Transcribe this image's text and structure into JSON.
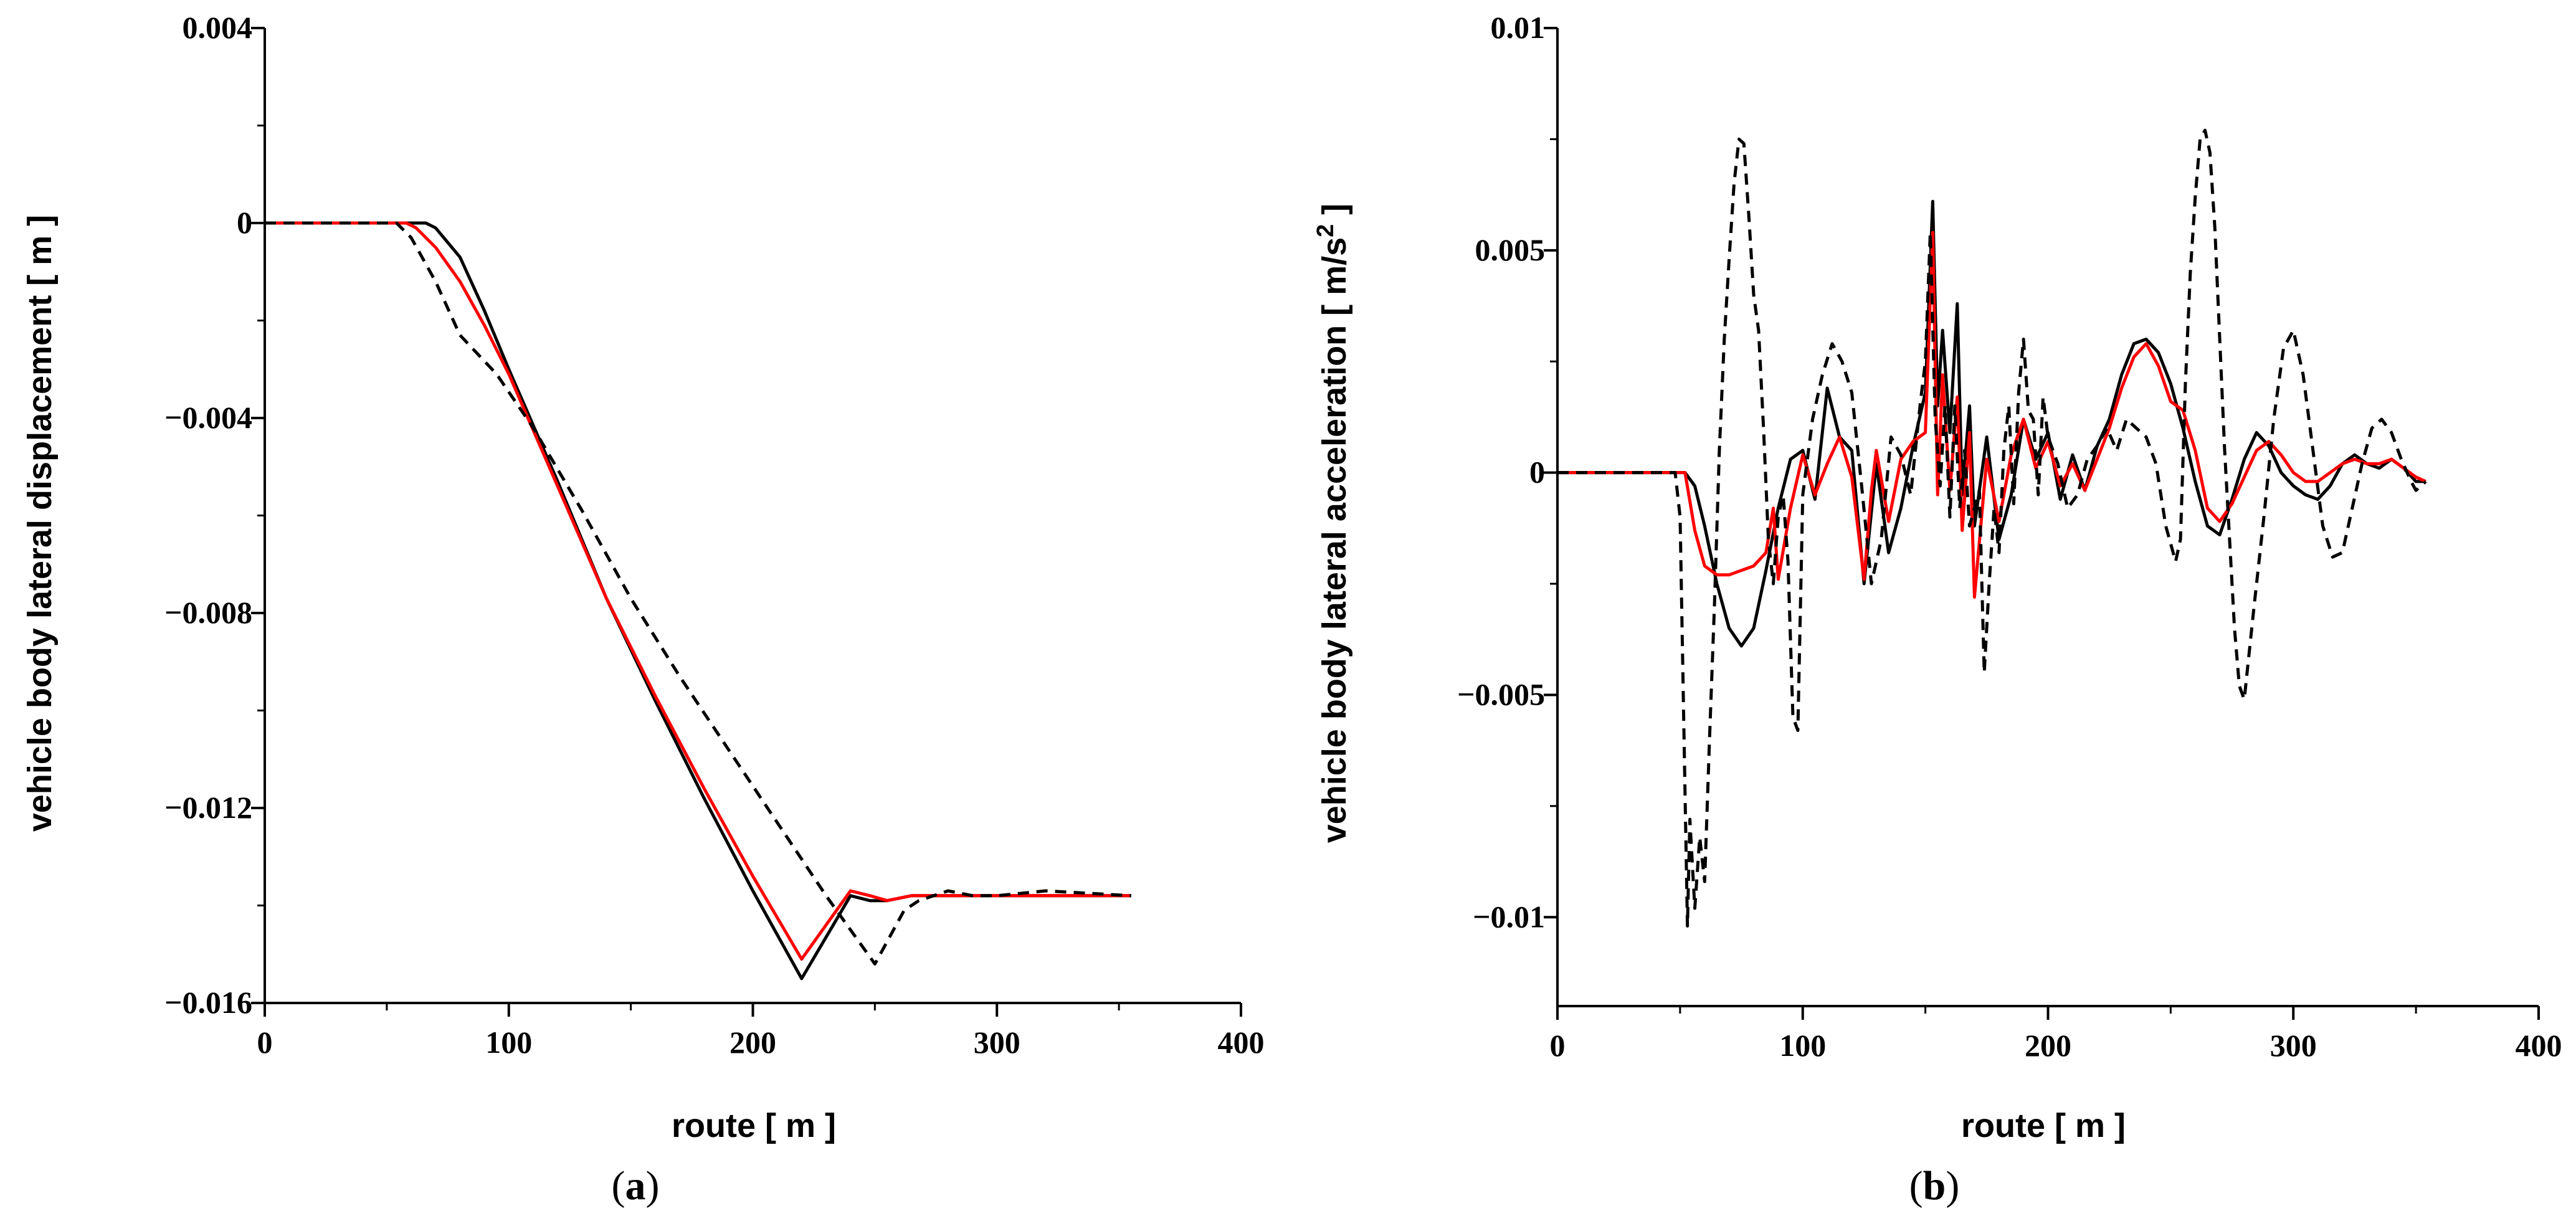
{
  "chart_data": [
    {
      "type": "line",
      "panel_label": "a",
      "xlabel": "route [ m ]",
      "ylabel": "vehicle body lateral displacement [ m ]",
      "xlim": [
        0,
        400
      ],
      "ylim": [
        -0.016,
        0.004
      ],
      "x_ticks": [
        0,
        100,
        200,
        300,
        400
      ],
      "x_tick_labels": [
        "0",
        "100",
        "200",
        "300",
        "400"
      ],
      "y_ticks": [
        0.004,
        0,
        -0.004,
        -0.008,
        -0.012,
        -0.016
      ],
      "y_tick_labels": [
        "0.004",
        "0",
        "−0.004",
        "−0.008",
        "−0.012",
        "−0.016"
      ],
      "series": [
        {
          "name": "black-solid",
          "color": "#000000",
          "dash": "",
          "x": [
            0,
            60,
            66,
            70,
            80,
            90,
            100,
            120,
            140,
            160,
            180,
            200,
            220,
            240,
            248,
            255,
            265,
            280,
            300,
            320,
            355
          ],
          "y": [
            0,
            0,
            0,
            -0.0001,
            -0.0007,
            -0.0018,
            -0.003,
            -0.0053,
            -0.0077,
            -0.0098,
            -0.0118,
            -0.0137,
            -0.0155,
            -0.0138,
            -0.0139,
            -0.0139,
            -0.0138,
            -0.0138,
            -0.0138,
            -0.0138,
            -0.0138
          ]
        },
        {
          "name": "red-solid",
          "color": "#ff0000",
          "dash": "",
          "x": [
            0,
            58,
            62,
            70,
            80,
            90,
            100,
            120,
            140,
            160,
            180,
            200,
            220,
            240,
            248,
            255,
            265,
            280,
            300,
            320,
            355
          ],
          "y": [
            0,
            0,
            -0.0001,
            -0.0005,
            -0.0012,
            -0.0021,
            -0.0031,
            -0.0054,
            -0.0077,
            -0.0097,
            -0.0116,
            -0.0134,
            -0.0151,
            -0.0137,
            -0.0138,
            -0.0139,
            -0.0138,
            -0.0138,
            -0.0138,
            -0.0138,
            -0.0138
          ]
        },
        {
          "name": "black-dashed",
          "color": "#000000",
          "dash": "18,12",
          "x": [
            0,
            54,
            60,
            70,
            80,
            95,
            110,
            130,
            150,
            170,
            190,
            210,
            230,
            250,
            262,
            268,
            280,
            290,
            300,
            320,
            355
          ],
          "y": [
            0,
            0,
            -0.0003,
            -0.0012,
            -0.0023,
            -0.0031,
            -0.0042,
            -0.0059,
            -0.0077,
            -0.0093,
            -0.0108,
            -0.0123,
            -0.0138,
            -0.0152,
            -0.0141,
            -0.0139,
            -0.0137,
            -0.0138,
            -0.0138,
            -0.0137,
            -0.0138
          ]
        }
      ]
    },
    {
      "type": "line",
      "panel_label": "b",
      "xlabel": "route [ m ]",
      "ylabel": "vehicle body lateral acceleration [ m/s",
      "ylabel_sup": "2",
      "ylabel_end": " ]",
      "xlim": [
        0,
        400
      ],
      "ylim": [
        -0.012,
        0.01
      ],
      "x_ticks": [
        0,
        100,
        200,
        300,
        400
      ],
      "x_tick_labels": [
        "0",
        "100",
        "200",
        "300",
        "400"
      ],
      "y_ticks": [
        0.01,
        0.005,
        0,
        -0.005,
        -0.01
      ],
      "y_tick_labels": [
        "0.01",
        "0.005",
        "0",
        "−0.005",
        "−0.01"
      ],
      "series": [
        {
          "name": "black-solid",
          "color": "#000000",
          "dash": "",
          "x": [
            0,
            48,
            52,
            56,
            60,
            65,
            70,
            75,
            80,
            85,
            90,
            95,
            100,
            105,
            110,
            115,
            120,
            125,
            130,
            135,
            140,
            145,
            150,
            153,
            155,
            157,
            160,
            163,
            165,
            168,
            170,
            175,
            180,
            185,
            190,
            195,
            200,
            205,
            210,
            215,
            220,
            225,
            230,
            235,
            240,
            245,
            250,
            255,
            260,
            265,
            270,
            275,
            280,
            285,
            290,
            295,
            300,
            305,
            310,
            315,
            320,
            325,
            330,
            335,
            340,
            345,
            350,
            354
          ],
          "y": [
            0,
            0,
            0,
            -0.0003,
            -0.0012,
            -0.0025,
            -0.0035,
            -0.0039,
            -0.0035,
            -0.0022,
            -0.0008,
            0.0003,
            0.0005,
            -0.0006,
            0.0019,
            0.0008,
            0.0005,
            -0.0025,
            0.0002,
            -0.0018,
            -0.0008,
            0.0006,
            0.0018,
            0.0061,
            0.0015,
            0.0032,
            0.0009,
            0.0038,
            -0.0005,
            0.0015,
            -0.0012,
            0.0008,
            -0.0015,
            -0.0005,
            0.0012,
            0.0003,
            0.0009,
            -0.0006,
            0.0004,
            -0.0004,
            0.0006,
            0.0012,
            0.0022,
            0.0029,
            0.003,
            0.0027,
            0.002,
            0.001,
            -0.0002,
            -0.0012,
            -0.0014,
            -0.0006,
            0.0003,
            0.0009,
            0.0006,
            0.0,
            -0.0003,
            -0.0005,
            -0.0006,
            -0.0003,
            0.0002,
            0.0004,
            0.0002,
            0.0001,
            0.0003,
            0.0001,
            -0.0002,
            -0.0002
          ]
        },
        {
          "name": "red-solid",
          "color": "#ff0000",
          "dash": "",
          "x": [
            0,
            48,
            52,
            56,
            60,
            65,
            70,
            75,
            80,
            85,
            88,
            90,
            95,
            100,
            105,
            110,
            115,
            120,
            125,
            128,
            130,
            135,
            140,
            145,
            150,
            153,
            155,
            157,
            160,
            163,
            165,
            168,
            170,
            175,
            180,
            185,
            190,
            195,
            200,
            205,
            210,
            215,
            220,
            225,
            230,
            235,
            240,
            245,
            250,
            255,
            260,
            265,
            270,
            275,
            280,
            285,
            290,
            295,
            300,
            305,
            310,
            315,
            320,
            325,
            330,
            335,
            340,
            345,
            350,
            354
          ],
          "y": [
            0,
            0,
            0,
            -0.0013,
            -0.0021,
            -0.0023,
            -0.0023,
            -0.0022,
            -0.0021,
            -0.0018,
            -0.0008,
            -0.0024,
            -0.0008,
            0.0004,
            -0.0005,
            0.0002,
            0.0008,
            -0.0001,
            -0.0024,
            -0.0004,
            0.0005,
            -0.0011,
            0.0003,
            0.0007,
            0.0009,
            0.0054,
            -0.0005,
            0.0022,
            -0.0004,
            0.0017,
            -0.0013,
            0.0009,
            -0.0028,
            0.0003,
            -0.0011,
            0.0004,
            0.0012,
            0.0001,
            0.0007,
            -0.0003,
            0.0002,
            -0.0004,
            0.0003,
            0.001,
            0.0019,
            0.0026,
            0.0029,
            0.0024,
            0.0016,
            0.0014,
            0.0005,
            -0.0008,
            -0.0011,
            -0.0007,
            -0.0001,
            0.0005,
            0.0007,
            0.0004,
            0.0,
            -0.0002,
            -0.0002,
            0.0,
            0.0002,
            0.0003,
            0.0002,
            0.0002,
            0.0003,
            0.0001,
            -0.0001,
            -0.0002
          ]
        },
        {
          "name": "black-dashed",
          "color": "#000000",
          "dash": "18,12",
          "x": [
            0,
            48,
            50,
            52,
            53,
            54,
            56,
            58,
            60,
            62,
            64,
            66,
            68,
            70,
            72,
            74,
            76,
            78,
            80,
            82,
            84,
            86,
            88,
            90,
            92,
            94,
            96,
            98,
            100,
            104,
            108,
            112,
            116,
            120,
            124,
            128,
            132,
            136,
            140,
            144,
            148,
            150,
            152,
            154,
            156,
            158,
            160,
            162,
            164,
            166,
            168,
            170,
            172,
            174,
            176,
            178,
            180,
            182,
            184,
            186,
            188,
            190,
            192,
            194,
            196,
            198,
            200,
            204,
            208,
            212,
            216,
            220,
            224,
            228,
            232,
            236,
            240,
            244,
            248,
            252,
            254,
            256,
            258,
            260,
            262,
            264,
            266,
            268,
            270,
            272,
            274,
            276,
            278,
            280,
            284,
            288,
            292,
            296,
            300,
            304,
            308,
            312,
            316,
            320,
            324,
            328,
            332,
            336,
            340,
            344,
            348,
            350,
            352,
            354
          ],
          "y": [
            0,
            0,
            -0.001,
            -0.0072,
            -0.0102,
            -0.0078,
            -0.0098,
            -0.0082,
            -0.0092,
            -0.006,
            -0.003,
            0.0005,
            0.003,
            0.0048,
            0.0065,
            0.0075,
            0.0074,
            0.0058,
            0.004,
            0.0032,
            0.001,
            -0.0015,
            -0.0025,
            -0.001,
            -0.0005,
            -0.002,
            -0.0055,
            -0.0058,
            -0.0005,
            0.0012,
            0.0022,
            0.0029,
            0.0025,
            0.0018,
            -0.0003,
            -0.0025,
            -0.0015,
            0.0008,
            0.0004,
            -0.0005,
            0.0016,
            0.0025,
            0.0054,
            0.0012,
            -0.0003,
            0.0015,
            -0.001,
            0.0015,
            -0.0008,
            0.0005,
            -0.0012,
            -0.0008,
            -0.0004,
            -0.0045,
            -0.0025,
            -0.0008,
            -0.0018,
            0.0005,
            0.0015,
            -0.0007,
            0.0018,
            0.003,
            0.0014,
            0.0012,
            -0.0005,
            0.0017,
            0.0008,
            0.0002,
            -0.0008,
            -0.0005,
            0.0003,
            0.0006,
            0.001,
            0.0005,
            0.0012,
            0.001,
            0.0008,
            0.0002,
            -0.0012,
            -0.002,
            -0.0015,
            0.002,
            0.0045,
            0.0062,
            0.0075,
            0.0077,
            0.0072,
            0.0055,
            0.003,
            0.0005,
            -0.0015,
            -0.0035,
            -0.0048,
            -0.0051,
            -0.003,
            -0.001,
            0.0012,
            0.0028,
            0.0032,
            0.0022,
            0.0005,
            -0.0012,
            -0.0019,
            -0.0018,
            -0.0008,
            0.0002,
            0.001,
            0.0012,
            0.0009,
            0.0003,
            -0.0002,
            -0.0004,
            -0.0003,
            -0.0002
          ]
        }
      ]
    }
  ]
}
